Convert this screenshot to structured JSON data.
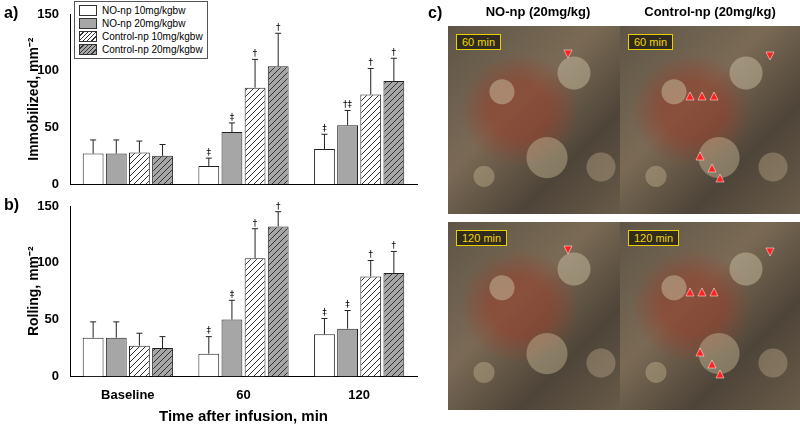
{
  "chart_data": [
    {
      "type": "bar",
      "title": "a)",
      "y_label": "Immobilized, mm⁻²",
      "categories": [
        "Baseline",
        "60",
        "120"
      ],
      "series": [
        {
          "name": "NO-np 10mg/kgbw",
          "color": "#ffffff",
          "values": [
            27,
            16,
            31
          ],
          "error": [
            12,
            7,
            13
          ],
          "significance": [
            null,
            "‡",
            "‡"
          ]
        },
        {
          "name": "NO-np 20mg/kgbw",
          "color": "#a6a6a6",
          "values": [
            27,
            46,
            52
          ],
          "error": [
            12,
            8,
            13
          ],
          "significance": [
            null,
            "‡",
            "†‡"
          ]
        },
        {
          "name": "Control-np 10mg/kgbw",
          "color": "#ffffff",
          "values": [
            28,
            85,
            79
          ],
          "error": [
            10,
            25,
            23
          ],
          "significance": [
            null,
            "†",
            "†"
          ]
        },
        {
          "name": "Control-np 20mg/kgbw",
          "color": "#a6a6a6",
          "values": [
            25,
            104,
            91
          ],
          "error": [
            10,
            29,
            20
          ],
          "significance": [
            null,
            "†",
            "†"
          ]
        }
      ],
      "ylim": [
        0,
        150
      ],
      "yticks": [
        0,
        50,
        100,
        150
      ],
      "grid": false,
      "legend": "upper left",
      "tick_labels": "y"
    },
    {
      "type": "bar",
      "title": "b)",
      "x_label": "Time after infusion, min",
      "y_label": "Rolling, mm⁻²",
      "categories": [
        "Baseline",
        "60",
        "120"
      ],
      "series": [
        {
          "name": "NO-np 10mg/kgbw",
          "color": "#ffffff",
          "values": [
            34,
            20,
            37
          ],
          "error": [
            14,
            15,
            14
          ],
          "significance": [
            null,
            "‡",
            "‡"
          ]
        },
        {
          "name": "NO-np 20mg/kgbw",
          "color": "#a6a6a6",
          "values": [
            34,
            50,
            42
          ],
          "error": [
            14,
            17,
            16
          ],
          "significance": [
            null,
            "‡",
            "‡"
          ]
        },
        {
          "name": "Control-np 10mg/kgbw",
          "color": "#ffffff",
          "values": [
            27,
            104,
            88
          ],
          "error": [
            11,
            26,
            14
          ],
          "significance": [
            null,
            "†",
            "†"
          ]
        },
        {
          "name": "Control-np 20mg/kgbw",
          "color": "#a6a6a6",
          "values": [
            25,
            132,
            91
          ],
          "error": [
            10,
            13,
            19
          ],
          "significance": [
            null,
            "†",
            "†"
          ]
        }
      ],
      "ylim": [
        0,
        150
      ],
      "yticks": [
        0,
        50,
        100,
        150
      ],
      "grid": false
    }
  ],
  "panel_c": {
    "label": "c)",
    "columns": [
      "NO-np (20mg/kg)",
      "Control-np (20mg/kg)"
    ],
    "rows": [
      "60 min",
      "120 min"
    ]
  }
}
